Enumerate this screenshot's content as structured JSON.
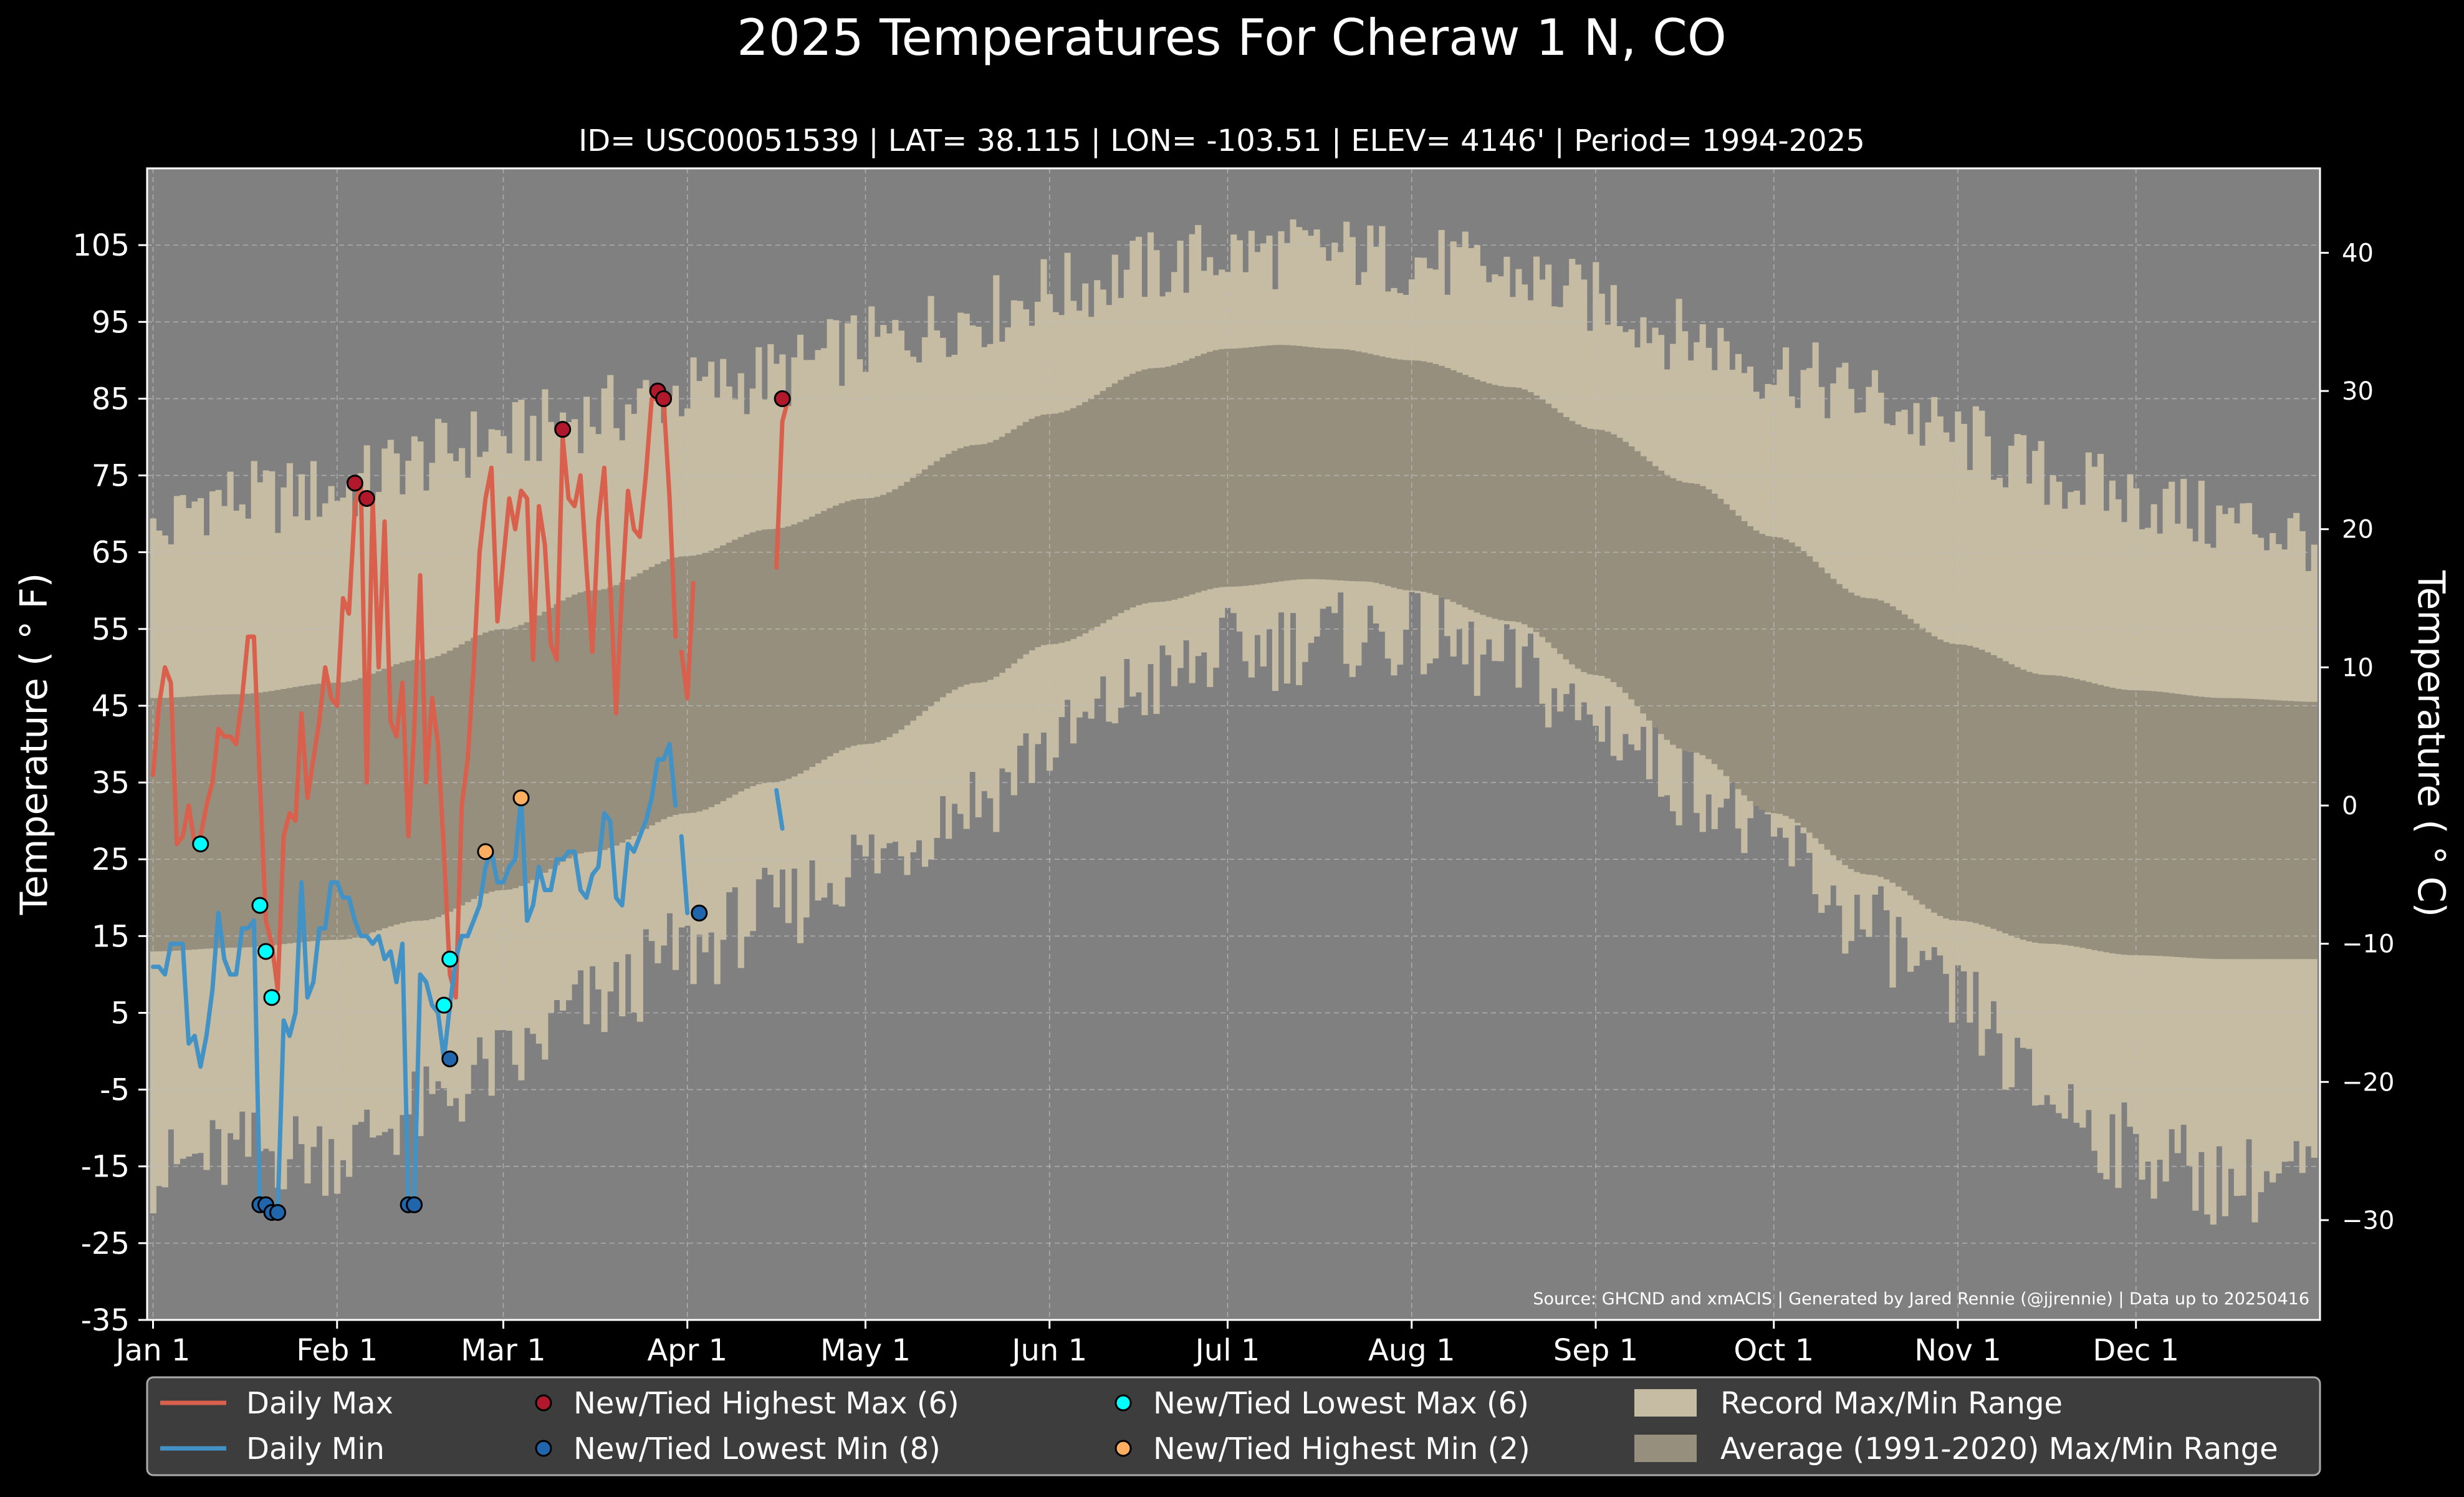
{
  "chart_data": {
    "type": "line",
    "title": "2025 Temperatures For Cheraw 1 N, CO",
    "subtitle": "ID= USC00051539 | LAT= 38.115 | LON= -103.51 | ELEV= 4146' | Period= 1994-2025",
    "ylabel": "Temperature ( ° F)",
    "ylabel_right": "Temperature ( ° C)",
    "source": "Source: GHCND and xmACIS | Generated by Jared Rennie (@jjrennie) | Data up to 20250416",
    "xlim": [
      0,
      366
    ],
    "ylim": [
      -35,
      115
    ],
    "x_ticks": [
      {
        "day": 1,
        "label": "Jan 1"
      },
      {
        "day": 32,
        "label": "Feb 1"
      },
      {
        "day": 60,
        "label": "Mar 1"
      },
      {
        "day": 91,
        "label": "Apr 1"
      },
      {
        "day": 121,
        "label": "May 1"
      },
      {
        "day": 152,
        "label": "Jun 1"
      },
      {
        "day": 182,
        "label": "Jul 1"
      },
      {
        "day": 213,
        "label": "Aug 1"
      },
      {
        "day": 244,
        "label": "Sep 1"
      },
      {
        "day": 274,
        "label": "Oct 1"
      },
      {
        "day": 305,
        "label": "Nov 1"
      },
      {
        "day": 335,
        "label": "Dec 1"
      }
    ],
    "y_ticks_f": [
      -35,
      -25,
      -15,
      -5,
      5,
      15,
      25,
      35,
      45,
      55,
      65,
      75,
      85,
      95,
      105
    ],
    "y_ticks_c": [
      -30,
      -20,
      -10,
      0,
      10,
      20,
      30,
      40
    ],
    "grid": true,
    "legend_position": "bottom",
    "colors": {
      "background": "#000000",
      "plot_background": "#808080",
      "record_range": "#c5bca3",
      "average_range": "#978f7e",
      "daily_max": "#d9604c",
      "daily_min": "#4292c6",
      "highest_max": "#b2182b",
      "lowest_min": "#2166ac",
      "lowest_max": "#00ffff",
      "highest_min": "#fdae61",
      "legend_background": "#3d3d3d"
    },
    "legend": [
      {
        "key": "daily_max",
        "kind": "line",
        "label": "Daily Max"
      },
      {
        "key": "daily_min",
        "kind": "line",
        "label": "Daily Min"
      },
      {
        "key": "highest_max",
        "kind": "dot",
        "label": "New/Tied Highest Max (6)"
      },
      {
        "key": "lowest_min",
        "kind": "dot",
        "label": "New/Tied Lowest Min (8)"
      },
      {
        "key": "lowest_max",
        "kind": "dot",
        "label": "New/Tied Lowest Max (6)"
      },
      {
        "key": "highest_min",
        "kind": "dot",
        "label": "New/Tied Highest Min (2)"
      },
      {
        "key": "record_range",
        "kind": "box",
        "label": "Record Max/Min Range"
      },
      {
        "key": "average_range",
        "kind": "box",
        "label": "Average (1991-2020) Max/Min Range"
      }
    ],
    "record_max_anchors": [
      [
        1,
        67
      ],
      [
        10,
        72
      ],
      [
        20,
        72
      ],
      [
        32,
        73
      ],
      [
        45,
        77
      ],
      [
        60,
        80
      ],
      [
        75,
        83
      ],
      [
        91,
        86
      ],
      [
        105,
        88
      ],
      [
        121,
        92
      ],
      [
        140,
        96
      ],
      [
        152,
        99
      ],
      [
        170,
        102
      ],
      [
        182,
        104
      ],
      [
        200,
        104
      ],
      [
        213,
        103
      ],
      [
        230,
        101
      ],
      [
        244,
        98
      ],
      [
        260,
        93
      ],
      [
        274,
        89
      ],
      [
        290,
        85
      ],
      [
        305,
        80
      ],
      [
        320,
        75
      ],
      [
        335,
        72
      ],
      [
        350,
        69
      ],
      [
        366,
        67
      ]
    ],
    "record_min_anchors": [
      [
        1,
        -16
      ],
      [
        10,
        -14
      ],
      [
        20,
        -13
      ],
      [
        32,
        -13
      ],
      [
        45,
        -8
      ],
      [
        60,
        -2
      ],
      [
        75,
        6
      ],
      [
        91,
        13
      ],
      [
        105,
        18
      ],
      [
        121,
        25
      ],
      [
        140,
        33
      ],
      [
        152,
        40
      ],
      [
        170,
        48
      ],
      [
        182,
        52
      ],
      [
        200,
        54
      ],
      [
        213,
        54
      ],
      [
        230,
        50
      ],
      [
        244,
        43
      ],
      [
        260,
        35
      ],
      [
        274,
        27
      ],
      [
        290,
        16
      ],
      [
        305,
        6
      ],
      [
        320,
        -6
      ],
      [
        335,
        -13
      ],
      [
        350,
        -17
      ],
      [
        366,
        -16
      ]
    ],
    "average_max_anchors": [
      [
        1,
        46
      ],
      [
        15,
        46.5
      ],
      [
        32,
        48
      ],
      [
        46,
        51
      ],
      [
        60,
        55
      ],
      [
        75,
        60
      ],
      [
        91,
        64.5
      ],
      [
        105,
        68
      ],
      [
        121,
        72
      ],
      [
        140,
        79
      ],
      [
        152,
        83
      ],
      [
        170,
        89
      ],
      [
        182,
        91.5
      ],
      [
        191,
        92
      ],
      [
        200,
        91.5
      ],
      [
        213,
        90
      ],
      [
        230,
        86.5
      ],
      [
        244,
        81
      ],
      [
        260,
        74
      ],
      [
        274,
        67
      ],
      [
        290,
        59
      ],
      [
        305,
        53
      ],
      [
        320,
        49
      ],
      [
        335,
        47
      ],
      [
        350,
        46
      ],
      [
        366,
        45.5
      ]
    ],
    "average_min_anchors": [
      [
        1,
        13
      ],
      [
        15,
        13.5
      ],
      [
        32,
        14.5
      ],
      [
        46,
        17
      ],
      [
        60,
        21
      ],
      [
        75,
        26
      ],
      [
        91,
        31
      ],
      [
        105,
        35
      ],
      [
        121,
        40
      ],
      [
        140,
        48
      ],
      [
        152,
        53
      ],
      [
        170,
        58.5
      ],
      [
        182,
        60.5
      ],
      [
        196,
        61.5
      ],
      [
        205,
        61.2
      ],
      [
        213,
        60
      ],
      [
        230,
        56
      ],
      [
        244,
        49
      ],
      [
        260,
        39
      ],
      [
        274,
        31
      ],
      [
        290,
        23
      ],
      [
        305,
        17
      ],
      [
        320,
        14
      ],
      [
        335,
        12.5
      ],
      [
        350,
        12
      ],
      [
        366,
        12
      ]
    ],
    "series": [
      {
        "name": "Daily Max",
        "values": [
          [
            1,
            36
          ],
          [
            2,
            45
          ],
          [
            3,
            50
          ],
          [
            4,
            48
          ],
          [
            5,
            27
          ],
          [
            6,
            28
          ],
          [
            7,
            32
          ],
          [
            8,
            27
          ],
          [
            9,
            28
          ],
          [
            10,
            32
          ],
          [
            11,
            35
          ],
          [
            12,
            42
          ],
          [
            13,
            41
          ],
          [
            14,
            41
          ],
          [
            15,
            40
          ],
          [
            16,
            46
          ],
          [
            17,
            54
          ],
          [
            18,
            54
          ],
          [
            19,
            35
          ],
          [
            20,
            17
          ],
          [
            21,
            14
          ],
          [
            22,
            8
          ],
          [
            23,
            28
          ],
          [
            24,
            31
          ],
          [
            25,
            30
          ],
          [
            26,
            44
          ],
          [
            27,
            33
          ],
          [
            28,
            38
          ],
          [
            29,
            43
          ],
          [
            30,
            50
          ],
          [
            31,
            46
          ],
          [
            32,
            45
          ],
          [
            33,
            59
          ],
          [
            34,
            57
          ],
          [
            35,
            71
          ],
          [
            36,
            74
          ],
          [
            37,
            35
          ],
          [
            38,
            72
          ],
          [
            39,
            50
          ],
          [
            40,
            69
          ],
          [
            41,
            43
          ],
          [
            42,
            41
          ],
          [
            43,
            48
          ],
          [
            44,
            28
          ],
          [
            45,
            42
          ],
          [
            46,
            62
          ],
          [
            47,
            35
          ],
          [
            48,
            46
          ],
          [
            49,
            40
          ],
          [
            50,
            26
          ],
          [
            51,
            10
          ],
          [
            52,
            7
          ],
          [
            53,
            32
          ],
          [
            54,
            38
          ],
          [
            55,
            50
          ],
          [
            56,
            65
          ],
          [
            57,
            72
          ],
          [
            58,
            76
          ],
          [
            59,
            56
          ],
          [
            60,
            64
          ],
          [
            61,
            72
          ],
          [
            62,
            68
          ],
          [
            63,
            73
          ],
          [
            64,
            72
          ],
          [
            65,
            51
          ],
          [
            66,
            71
          ],
          [
            67,
            66
          ],
          [
            68,
            53
          ],
          [
            69,
            51
          ],
          [
            70,
            80
          ],
          [
            71,
            72
          ],
          [
            72,
            71
          ],
          [
            73,
            75
          ],
          [
            74,
            63
          ],
          [
            75,
            52
          ],
          [
            76,
            69
          ],
          [
            77,
            76
          ],
          [
            78,
            61
          ],
          [
            79,
            44
          ],
          [
            80,
            60
          ],
          [
            81,
            73
          ],
          [
            82,
            68
          ],
          [
            83,
            67
          ],
          [
            84,
            75
          ],
          [
            85,
            85
          ],
          [
            86,
            85
          ],
          [
            87,
            85
          ],
          [
            88,
            72
          ],
          [
            89,
            54
          ]
        ]
      },
      {
        "name": "Daily Min",
        "values": [
          [
            1,
            11
          ],
          [
            2,
            11
          ],
          [
            3,
            10
          ],
          [
            4,
            14
          ],
          [
            5,
            14
          ],
          [
            6,
            14
          ],
          [
            7,
            1
          ],
          [
            8,
            2
          ],
          [
            9,
            -2
          ],
          [
            10,
            2
          ],
          [
            11,
            8
          ],
          [
            12,
            18
          ],
          [
            13,
            12
          ],
          [
            14,
            10
          ],
          [
            15,
            10
          ],
          [
            16,
            16
          ],
          [
            17,
            16
          ],
          [
            18,
            17
          ],
          [
            19,
            -20
          ],
          [
            20,
            -20
          ],
          [
            21,
            -21
          ],
          [
            22,
            -21
          ],
          [
            23,
            4
          ],
          [
            24,
            2
          ],
          [
            25,
            5
          ],
          [
            26,
            22
          ],
          [
            27,
            7
          ],
          [
            28,
            9
          ],
          [
            29,
            16
          ],
          [
            30,
            16
          ],
          [
            31,
            22
          ],
          [
            32,
            22
          ],
          [
            33,
            20
          ],
          [
            34,
            20
          ],
          [
            35,
            17
          ],
          [
            36,
            15
          ],
          [
            37,
            15
          ],
          [
            38,
            14
          ],
          [
            39,
            15
          ],
          [
            40,
            12
          ],
          [
            41,
            13
          ],
          [
            42,
            9
          ],
          [
            43,
            14
          ],
          [
            44,
            -20
          ],
          [
            45,
            -20
          ],
          [
            46,
            10
          ],
          [
            47,
            9
          ],
          [
            48,
            6
          ],
          [
            49,
            5
          ],
          [
            50,
            -1
          ],
          [
            51,
            6
          ],
          [
            52,
            12
          ],
          [
            53,
            15
          ],
          [
            54,
            15
          ],
          [
            55,
            17
          ],
          [
            56,
            19
          ],
          [
            57,
            24
          ],
          [
            58,
            26
          ],
          [
            59,
            22
          ],
          [
            60,
            22
          ],
          [
            61,
            24
          ],
          [
            62,
            25
          ],
          [
            63,
            33
          ],
          [
            64,
            17
          ],
          [
            65,
            19
          ],
          [
            66,
            24
          ],
          [
            67,
            21
          ],
          [
            68,
            21
          ],
          [
            69,
            25
          ],
          [
            70,
            25
          ],
          [
            71,
            26
          ],
          [
            72,
            26
          ],
          [
            73,
            21
          ],
          [
            74,
            20
          ],
          [
            75,
            23
          ],
          [
            76,
            24
          ],
          [
            77,
            31
          ],
          [
            78,
            30
          ],
          [
            79,
            20
          ],
          [
            80,
            19
          ],
          [
            81,
            27
          ],
          [
            82,
            26
          ],
          [
            83,
            28
          ],
          [
            84,
            30
          ],
          [
            85,
            33
          ],
          [
            86,
            38
          ],
          [
            87,
            38
          ],
          [
            88,
            40
          ],
          [
            89,
            32
          ]
        ]
      },
      {
        "name": "Daily Max",
        "values": [
          [
            90,
            52
          ],
          [
            91,
            46
          ],
          [
            92,
            61
          ]
        ]
      },
      {
        "name": "Daily Min",
        "values": [
          [
            90,
            28
          ],
          [
            91,
            18
          ]
        ]
      },
      {
        "name": "Daily Max",
        "values": [
          [
            106,
            63
          ],
          [
            107,
            82
          ],
          [
            108,
            85
          ]
        ]
      },
      {
        "name": "Daily Min",
        "values": [
          [
            106,
            34
          ],
          [
            107,
            29
          ]
        ]
      }
    ],
    "markers": [
      {
        "type": "highest_max",
        "points": [
          [
            35,
            74
          ],
          [
            37,
            72
          ],
          [
            70,
            81
          ],
          [
            86,
            86
          ],
          [
            87,
            85
          ],
          [
            107,
            85
          ]
        ]
      },
      {
        "type": "lowest_min",
        "points": [
          [
            19,
            -20
          ],
          [
            20,
            -20
          ],
          [
            21,
            -21
          ],
          [
            22,
            -21
          ],
          [
            44,
            -20
          ],
          [
            45,
            -20
          ],
          [
            51,
            -1
          ],
          [
            93,
            18
          ]
        ]
      },
      {
        "type": "lowest_max",
        "points": [
          [
            9,
            27
          ],
          [
            19,
            19
          ],
          [
            20,
            13
          ],
          [
            21,
            7
          ],
          [
            50,
            6
          ],
          [
            51,
            12
          ]
        ]
      },
      {
        "type": "highest_min",
        "points": [
          [
            57,
            26
          ],
          [
            63,
            33
          ]
        ]
      }
    ]
  }
}
